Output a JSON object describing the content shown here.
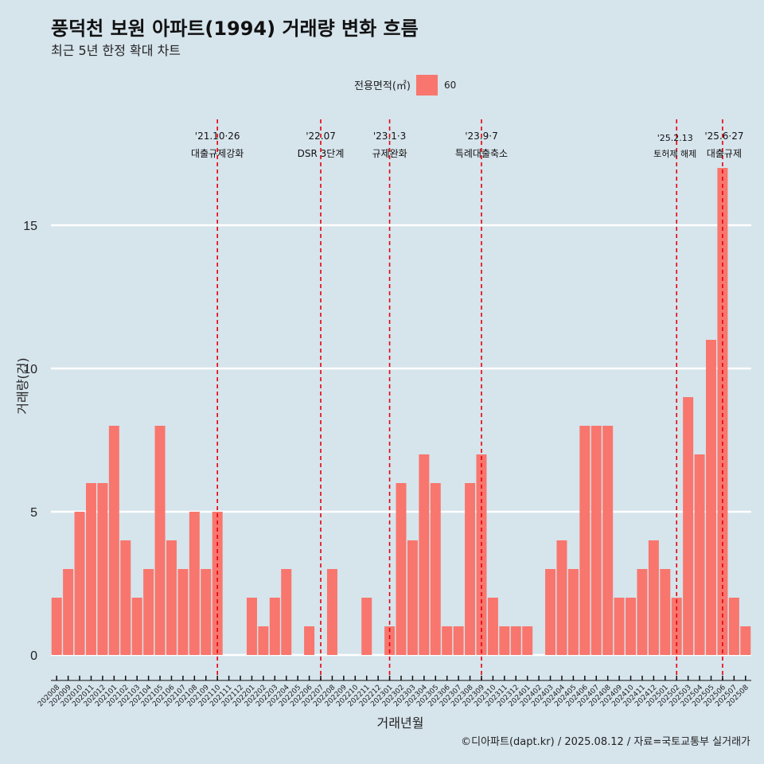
{
  "chart_data": {
    "type": "bar",
    "title": "풍덕천 보원 아파트(1994) 거래량 변화 흐름",
    "subtitle": "최근 5년 한정 확대 차트",
    "xlabel": "거래년월",
    "ylabel": "거래량(건)",
    "caption": "©디아파트(dapt.kr) / 2025.08.12 / 자료=국토교통부 실거래가",
    "ylim": [
      0,
      17
    ],
    "yticks": [
      0,
      5,
      10,
      15
    ],
    "grid": true,
    "legend": {
      "title": "전용면적(㎡)",
      "position": "top",
      "entries": [
        {
          "label": "60",
          "color": "#f8766d"
        }
      ]
    },
    "bar_color": "#f8766d",
    "categories": [
      "202008",
      "202009",
      "202010",
      "202011",
      "202012",
      "202101",
      "202102",
      "202103",
      "202104",
      "202105",
      "202106",
      "202107",
      "202108",
      "202109",
      "202110",
      "202111",
      "202112",
      "202201",
      "202202",
      "202203",
      "202204",
      "202205",
      "202206",
      "202207",
      "202208",
      "202209",
      "202210",
      "202211",
      "202212",
      "202301",
      "202302",
      "202303",
      "202304",
      "202305",
      "202306",
      "202307",
      "202308",
      "202309",
      "202310",
      "202311",
      "202312",
      "202401",
      "202402",
      "202403",
      "202404",
      "202405",
      "202406",
      "202407",
      "202408",
      "202409",
      "202410",
      "202411",
      "202412",
      "202501",
      "202502",
      "202503",
      "202504",
      "202505",
      "202506",
      "202507",
      "202508"
    ],
    "values": [
      2,
      3,
      5,
      6,
      6,
      8,
      4,
      2,
      3,
      8,
      4,
      3,
      5,
      3,
      5,
      0,
      0,
      2,
      1,
      2,
      3,
      0,
      1,
      0,
      3,
      0,
      0,
      2,
      0,
      1,
      6,
      4,
      7,
      6,
      1,
      1,
      6,
      7,
      2,
      1,
      1,
      1,
      0,
      3,
      4,
      3,
      8,
      8,
      8,
      2,
      2,
      3,
      4,
      3,
      2,
      9,
      7,
      11,
      17,
      2,
      1
    ],
    "annotations": [
      {
        "category": "202110",
        "date": "'21.10·26",
        "label": "대출규제강화"
      },
      {
        "category": "202207",
        "date": "'22.07",
        "label": "DSR 3단계"
      },
      {
        "category": "202301",
        "date": "'23.1·3",
        "label": "규제완화"
      },
      {
        "category": "202309",
        "date": "'23.9·7",
        "label": "특례대출축소"
      },
      {
        "category": "202502",
        "date": "'25.2.13",
        "label": "토허제 해제"
      },
      {
        "category": "202506",
        "date": "'25.6·27",
        "label": "대출규제"
      }
    ],
    "annotation_color": "#e8000b"
  }
}
